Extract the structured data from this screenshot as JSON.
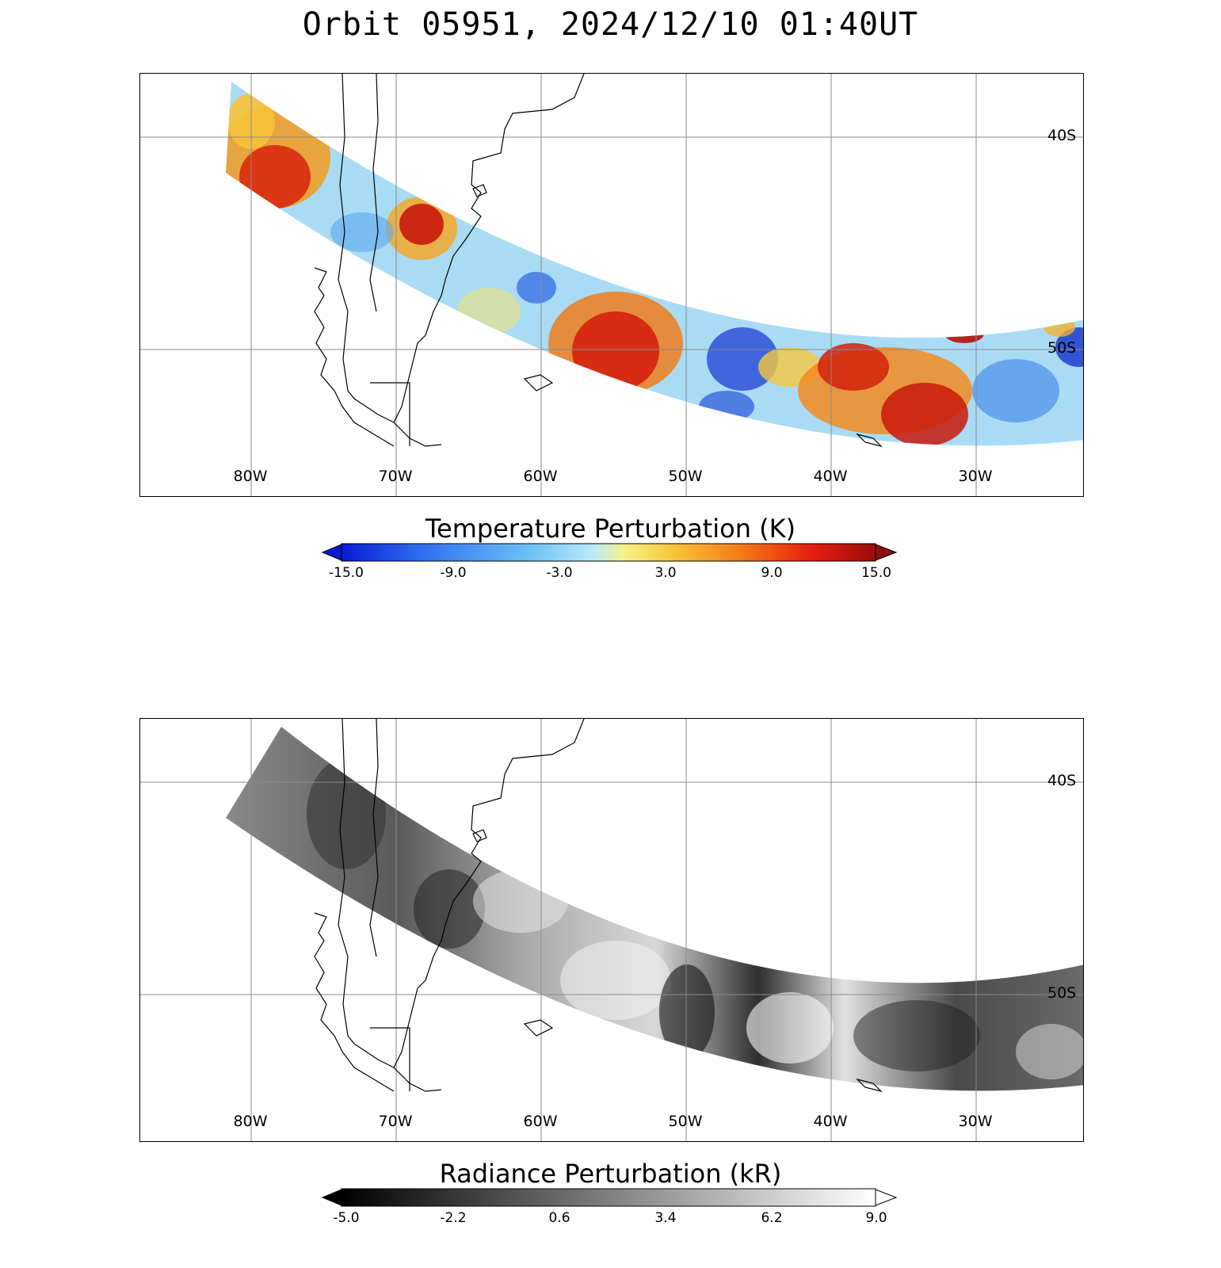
{
  "title": "Orbit 05951, 2024/12/10 01:40UT",
  "lon_labels": [
    "80W",
    "70W",
    "60W",
    "50W",
    "40W",
    "30W"
  ],
  "lat_labels": [
    "40S",
    "50S"
  ],
  "top_colorbar": {
    "title": "Temperature Perturbation (K)",
    "ticks": [
      "-15.0",
      "-9.0",
      "-3.0",
      "3.0",
      "9.0",
      "15.0"
    ],
    "colors": [
      "#0a1ad4",
      "#2f6ff0",
      "#6cc0f5",
      "#b9eafa",
      "#f6f28a",
      "#f8c53c",
      "#f37a18",
      "#e51f10",
      "#9d0b0b"
    ],
    "under_color": "#0a1ad4",
    "over_color": "#8c1010"
  },
  "bottom_colorbar": {
    "title": "Radiance Perturbation (kR)",
    "ticks": [
      "-5.0",
      "-2.2",
      "0.6",
      "3.4",
      "6.2",
      "9.0"
    ],
    "colors": [
      "#000000",
      "#ffffff"
    ],
    "under_color": "#000000",
    "over_color": "#ffffff"
  }
}
